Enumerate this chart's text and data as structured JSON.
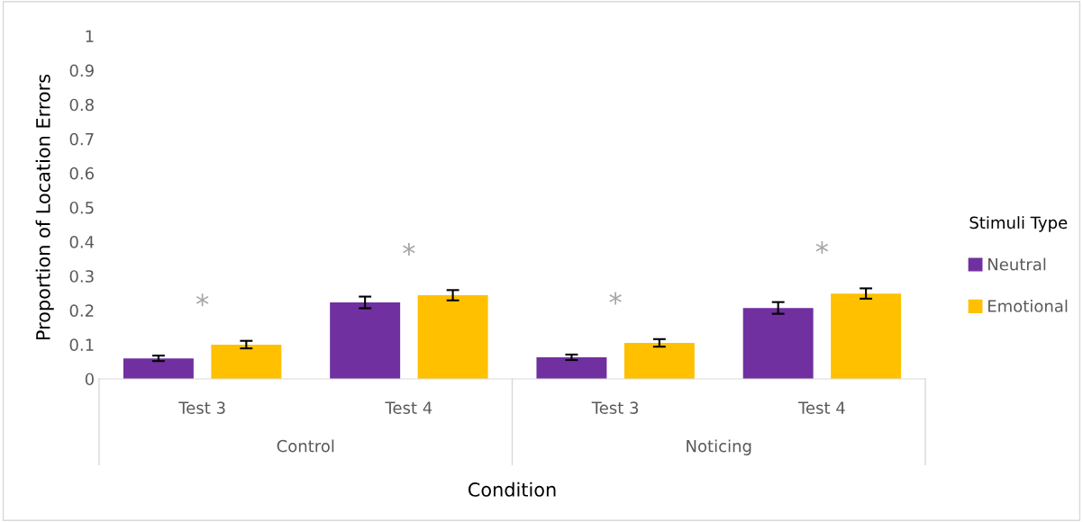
{
  "chart_data": {
    "type": "bar",
    "xlabel": "Condition",
    "ylabel": "Proportion of Location Errors",
    "categories": [
      "Test 3",
      "Test 4",
      "Test 3",
      "Test 4"
    ],
    "series": [
      {
        "name": "Neutral",
        "color": "#7030a0",
        "values": [
          0.06,
          0.223,
          0.063,
          0.207
        ],
        "errors": [
          0.008,
          0.017,
          0.008,
          0.017
        ]
      },
      {
        "name": "Emotional",
        "color": "#ffc000",
        "values": [
          0.1,
          0.244,
          0.105,
          0.249
        ],
        "errors": [
          0.011,
          0.015,
          0.011,
          0.015
        ]
      }
    ],
    "legend_title": "Stimuli Type",
    "legend": "right",
    "ylim": [
      0,
      1
    ],
    "yticks": [
      0,
      0.1,
      0.2,
      0.3,
      0.4,
      0.5,
      0.6,
      0.7,
      0.8,
      0.9,
      1
    ],
    "annotations": [
      "*",
      "*",
      "*",
      "*",
      "Control",
      "Noticing"
    ],
    "grid": false
  }
}
